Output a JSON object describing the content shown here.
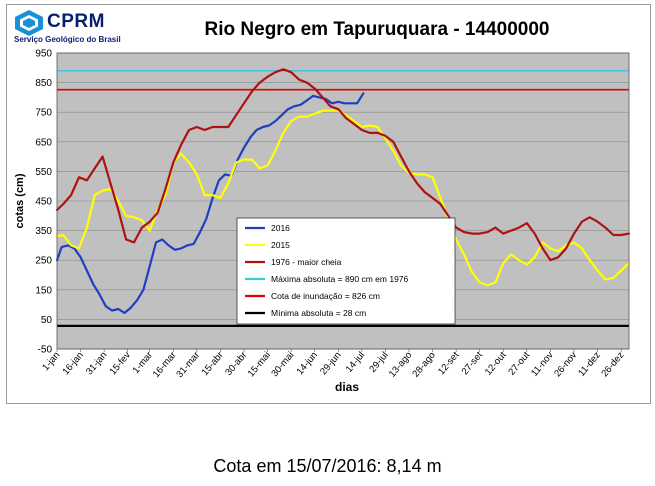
{
  "logo": {
    "name": "CPRM",
    "subtitle": "Serviço Geológico do Brasil"
  },
  "caption": "Cota em 15/07/2016: 8,14 m",
  "chart_data": {
    "type": "line",
    "title": "Rio Negro em Tapuruquara -  14400000",
    "xlabel": "dias",
    "ylabel": "cotas (cm)",
    "ylim": [
      -50,
      950
    ],
    "yticks": [
      -50,
      50,
      150,
      250,
      350,
      450,
      550,
      650,
      750,
      850,
      950
    ],
    "xlim": [
      1,
      365
    ],
    "xticks": [
      {
        "day": 1,
        "label": "1-jan"
      },
      {
        "day": 16,
        "label": "16-jan"
      },
      {
        "day": 31,
        "label": "31-jan"
      },
      {
        "day": 46,
        "label": "15-fev"
      },
      {
        "day": 60,
        "label": "1-mar"
      },
      {
        "day": 75,
        "label": "16-mar"
      },
      {
        "day": 90,
        "label": "31-mar"
      },
      {
        "day": 105,
        "label": "15-abr"
      },
      {
        "day": 120,
        "label": "30-abr"
      },
      {
        "day": 135,
        "label": "15-mai"
      },
      {
        "day": 150,
        "label": "30-mai"
      },
      {
        "day": 165,
        "label": "14-jun"
      },
      {
        "day": 180,
        "label": "29-jun"
      },
      {
        "day": 195,
        "label": "14-jul"
      },
      {
        "day": 210,
        "label": "29-jul"
      },
      {
        "day": 225,
        "label": "13-ago"
      },
      {
        "day": 240,
        "label": "28-ago"
      },
      {
        "day": 255,
        "label": "12-set"
      },
      {
        "day": 270,
        "label": "27-set"
      },
      {
        "day": 285,
        "label": "12-out"
      },
      {
        "day": 300,
        "label": "27-out"
      },
      {
        "day": 315,
        "label": "11-nov"
      },
      {
        "day": 330,
        "label": "26-nov"
      },
      {
        "day": 345,
        "label": "11-dez"
      },
      {
        "day": 360,
        "label": "26-dez"
      }
    ],
    "grid": true,
    "background": "#c0c0c0",
    "series": [
      {
        "name": "2016",
        "color": "#1f3fbf",
        "x": [
          1,
          4,
          8,
          12,
          16,
          20,
          24,
          28,
          32,
          36,
          40,
          44,
          48,
          52,
          56,
          60,
          64,
          68,
          72,
          76,
          80,
          84,
          88,
          92,
          96,
          100,
          104,
          108,
          112,
          116,
          120,
          124,
          128,
          132,
          136,
          140,
          144,
          148,
          152,
          156,
          160,
          164,
          168,
          172,
          176,
          180,
          184,
          188,
          192,
          196
        ],
        "y": [
          250,
          295,
          300,
          290,
          260,
          215,
          170,
          135,
          95,
          80,
          85,
          72,
          90,
          115,
          150,
          230,
          310,
          320,
          300,
          285,
          290,
          300,
          305,
          345,
          390,
          460,
          520,
          540,
          535,
          590,
          630,
          665,
          690,
          700,
          705,
          720,
          740,
          760,
          770,
          775,
          790,
          805,
          800,
          795,
          780,
          785,
          780,
          780,
          780,
          814
        ]
      },
      {
        "name": "2015",
        "color": "#ffff00",
        "x": [
          1,
          5,
          10,
          15,
          20,
          25,
          30,
          35,
          40,
          45,
          50,
          55,
          60,
          65,
          70,
          75,
          80,
          85,
          90,
          95,
          100,
          105,
          110,
          115,
          120,
          125,
          130,
          135,
          140,
          145,
          150,
          155,
          160,
          165,
          170,
          175,
          180,
          185,
          190,
          195,
          200,
          205,
          210,
          215,
          220,
          225,
          230,
          235,
          240,
          245,
          250,
          255,
          260,
          265,
          270,
          275,
          280,
          285,
          290,
          295,
          300,
          305,
          310,
          315,
          320,
          325,
          330,
          335,
          340,
          345,
          350,
          355,
          360,
          365
        ],
        "y": [
          330,
          335,
          300,
          290,
          360,
          470,
          485,
          490,
          450,
          400,
          395,
          385,
          350,
          420,
          470,
          580,
          610,
          580,
          540,
          470,
          470,
          460,
          510,
          580,
          590,
          590,
          560,
          570,
          620,
          680,
          720,
          735,
          735,
          745,
          755,
          755,
          755,
          740,
          720,
          700,
          705,
          700,
          660,
          620,
          570,
          545,
          540,
          540,
          530,
          460,
          390,
          320,
          270,
          210,
          175,
          165,
          175,
          240,
          270,
          250,
          235,
          260,
          310,
          290,
          280,
          300,
          310,
          290,
          250,
          215,
          185,
          190,
          215,
          240
        ]
      },
      {
        "name": "1976 - maior cheia",
        "color": "#b01010",
        "x": [
          1,
          5,
          10,
          15,
          20,
          25,
          30,
          35,
          40,
          45,
          50,
          55,
          60,
          65,
          70,
          75,
          80,
          85,
          90,
          95,
          100,
          105,
          110,
          115,
          120,
          125,
          130,
          135,
          140,
          145,
          150,
          155,
          160,
          165,
          170,
          175,
          180,
          185,
          190,
          195,
          200,
          205,
          210,
          215,
          220,
          225,
          230,
          235,
          240,
          245,
          250,
          255,
          260,
          265,
          270,
          275,
          280,
          285,
          290,
          295,
          300,
          305,
          310,
          315,
          320,
          325,
          330,
          335,
          340,
          345,
          350,
          355,
          360,
          365
        ],
        "y": [
          420,
          440,
          470,
          530,
          520,
          560,
          600,
          510,
          420,
          320,
          310,
          360,
          380,
          410,
          490,
          580,
          640,
          690,
          700,
          690,
          700,
          700,
          700,
          740,
          780,
          820,
          850,
          870,
          885,
          895,
          885,
          860,
          850,
          830,
          800,
          770,
          760,
          730,
          710,
          690,
          680,
          680,
          670,
          650,
          600,
          550,
          510,
          480,
          460,
          440,
          400,
          360,
          345,
          340,
          340,
          345,
          360,
          340,
          350,
          360,
          375,
          340,
          290,
          250,
          260,
          290,
          340,
          380,
          395,
          380,
          360,
          335,
          335,
          340
        ]
      }
    ],
    "reference_lines": [
      {
        "name": "Máxima absoluta = 890 cm em 1976",
        "value": 890,
        "color": "#40c8e0"
      },
      {
        "name": "Cota de inundação  = 826 cm",
        "value": 826,
        "color": "#e00000"
      },
      {
        "name": "Mínima absoluta = 28 cm",
        "value": 28,
        "color": "#000000"
      }
    ],
    "legend_position": "center-right"
  }
}
